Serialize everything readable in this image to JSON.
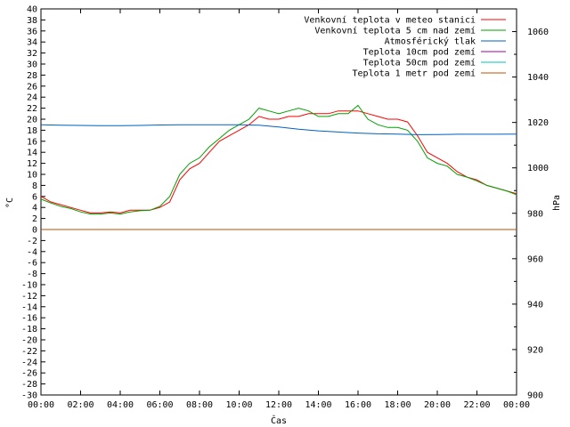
{
  "chart_data": {
    "type": "line",
    "xlabel": "Čas",
    "ylabel": "°C",
    "y2label": "hPa",
    "xlim": [
      0,
      24
    ],
    "ylim": [
      -30,
      40
    ],
    "y2lim": [
      900,
      1070
    ],
    "x_ticks": [
      "00:00",
      "02:00",
      "04:00",
      "06:00",
      "08:00",
      "10:00",
      "12:00",
      "14:00",
      "16:00",
      "18:00",
      "20:00",
      "22:00",
      "00:00"
    ],
    "y_ticks": [
      40,
      38,
      36,
      34,
      32,
      30,
      28,
      26,
      24,
      22,
      20,
      18,
      16,
      14,
      12,
      10,
      8,
      6,
      4,
      2,
      0,
      -2,
      -4,
      -6,
      -8,
      -10,
      -12,
      -14,
      -16,
      -18,
      -20,
      -22,
      -24,
      -26,
      -28,
      -30
    ],
    "y2_ticks": [
      1060,
      1040,
      1020,
      1000,
      980,
      960,
      940,
      920,
      900
    ],
    "grid": false,
    "legend_position": "top-right",
    "series": [
      {
        "name": "Venkovní teplota v meteo stanici",
        "color": "#ff0000",
        "axis": "left",
        "x": [
          0,
          0.5,
          1,
          1.5,
          2,
          2.5,
          3,
          3.5,
          4,
          4.5,
          5,
          5.5,
          6,
          6.5,
          7,
          7.5,
          8,
          8.5,
          9,
          9.5,
          10,
          10.5,
          11,
          11.5,
          12,
          12.5,
          13,
          13.5,
          14,
          14.5,
          15,
          15.5,
          16,
          16.5,
          17,
          17.5,
          18,
          18.5,
          19,
          19.5,
          20,
          20.5,
          21,
          21.5,
          22,
          22.5,
          23,
          23.5,
          24
        ],
        "values": [
          6,
          5,
          4.5,
          4,
          3.5,
          3,
          3,
          3.2,
          3,
          3.5,
          3.5,
          3.5,
          4,
          5,
          9,
          11,
          12,
          14,
          16,
          17,
          18,
          19,
          20.5,
          20,
          20,
          20.5,
          20.5,
          21,
          21,
          21,
          21.5,
          21.5,
          21.5,
          21,
          20.5,
          20,
          20,
          19.5,
          17,
          14,
          13,
          12,
          10.5,
          9.5,
          9,
          8,
          7.5,
          7,
          6.5
        ]
      },
      {
        "name": "Venkovní teplota 5 cm nad zemí",
        "color": "#00a000",
        "axis": "left",
        "x": [
          0,
          0.5,
          1,
          1.5,
          2,
          2.5,
          3,
          3.5,
          4,
          4.5,
          5,
          5.5,
          6,
          6.5,
          7,
          7.5,
          8,
          8.5,
          9,
          9.5,
          10,
          10.5,
          11,
          11.5,
          12,
          12.5,
          13,
          13.5,
          14,
          14.5,
          15,
          15.5,
          16,
          16.5,
          17,
          17.5,
          18,
          18.5,
          19,
          19.5,
          20,
          20.5,
          21,
          21.5,
          22,
          22.5,
          23,
          23.5,
          24
        ],
        "values": [
          5.5,
          4.8,
          4.2,
          3.8,
          3.2,
          2.8,
          2.8,
          3,
          2.8,
          3.2,
          3.4,
          3.5,
          4.2,
          6,
          10,
          12,
          13,
          15,
          16.5,
          18,
          19,
          20,
          22,
          21.5,
          21,
          21.5,
          22,
          21.5,
          20.5,
          20.5,
          21,
          21,
          22.5,
          20,
          19,
          18.5,
          18.5,
          18,
          16,
          13,
          12,
          11.5,
          10,
          9.5,
          8.8,
          8,
          7.5,
          7,
          6.3
        ]
      },
      {
        "name": "Atmosférický tlak",
        "color": "#0060c0",
        "axis": "right",
        "x": [
          0,
          1,
          2,
          3,
          4,
          5,
          6,
          7,
          8,
          9,
          10,
          11,
          12,
          13,
          14,
          15,
          16,
          17,
          18,
          19,
          20,
          21,
          22,
          23,
          24
        ],
        "values": [
          1019,
          1018.8,
          1018.7,
          1018.6,
          1018.6,
          1018.7,
          1018.9,
          1019,
          1019,
          1019,
          1019,
          1018.8,
          1018,
          1017,
          1016.3,
          1015.8,
          1015.3,
          1015,
          1014.9,
          1014.6,
          1014.7,
          1014.8,
          1014.8,
          1014.8,
          1014.9
        ]
      },
      {
        "name": "Teplota 10cm pod zemí",
        "color": "#a000a0",
        "axis": "left",
        "x": [],
        "values": []
      },
      {
        "name": "Teplota 50cm pod zemí",
        "color": "#00c0c0",
        "axis": "left",
        "x": [],
        "values": []
      },
      {
        "name": "Teplota 1 metr pod zemí",
        "color": "#c05000",
        "axis": "left",
        "x": [
          0,
          24
        ],
        "values": [
          0,
          0
        ]
      }
    ]
  }
}
